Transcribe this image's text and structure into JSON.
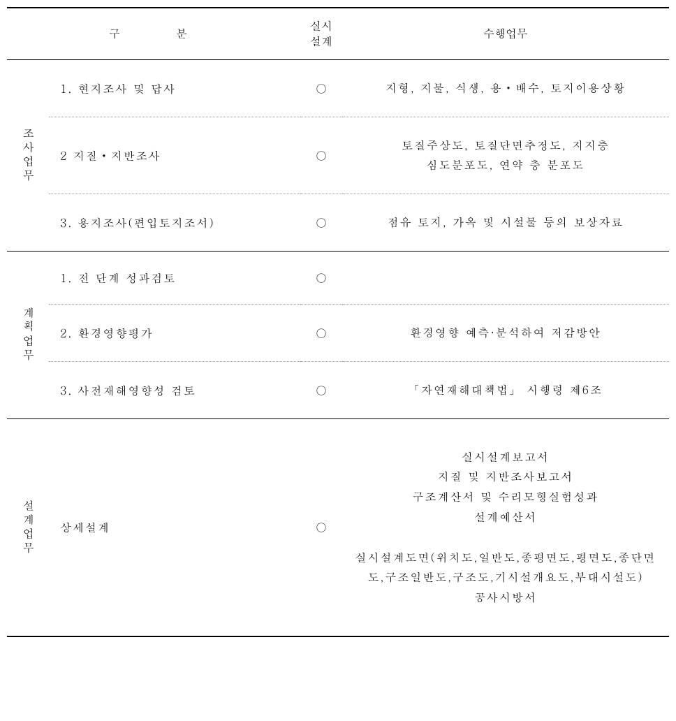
{
  "header": {
    "category": "구　　분",
    "design": "실시\n설계",
    "task": "수행업무"
  },
  "groups": [
    {
      "label": "조사업무",
      "rows": [
        {
          "name": "1. 현지조사 및 답사",
          "check": "○",
          "desc": "지형, 지물, 식생, 용・배수, 토지이용상황",
          "border": "dotted"
        },
        {
          "name": "2 지질・지반조사",
          "check": "○",
          "desc": "토질주상도, 토질단면추정도, 지지층\n심도분포도, 연약 층 분포도",
          "border": "dotted"
        },
        {
          "name": "3. 용지조사(편입토지조서)",
          "check": "○",
          "desc": "점유 토지, 가옥 및 시설물 등의 보상자료",
          "border": "solid"
        }
      ]
    },
    {
      "label": "계획업무",
      "rows": [
        {
          "name": "1. 전 단계 성과검토",
          "check": "○",
          "desc": "",
          "border": "dotted"
        },
        {
          "name": "2. 환경영향평가",
          "check": "○",
          "desc": "환경영향 예측·분석하여 저감방안",
          "border": "dotted"
        },
        {
          "name": "3. 사전재해영향성 검토",
          "check": "○",
          "desc": "「자연재해대책법」 시행령 제6조",
          "border": "solid"
        }
      ]
    },
    {
      "label": "설계업무",
      "rows": [
        {
          "name": "상세설계",
          "check": "○",
          "desc": "실시설계보고서\n지질 및 지반조사보고서\n구조계산서 및 수리모형실험성과\n설계예산서\n\n실시설계도면(위치도,일반도,종평면도,평면도,종단면도,구조일반도,구조도,기시설개요도,부대시설도)\n공사시방서",
          "border": "none",
          "large": true
        }
      ]
    }
  ]
}
